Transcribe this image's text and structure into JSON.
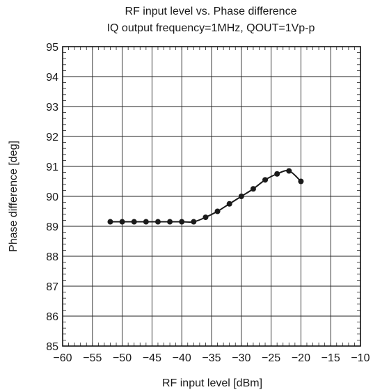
{
  "chart_data": {
    "type": "line",
    "title": "RF input level vs. Phase difference",
    "subtitle": "IQ output frequency=1MHz, QOUT=1Vp-p",
    "xlabel": "RF input level [dBm]",
    "ylabel": "Phase difference [deg]",
    "xlim": [
      -60,
      -10
    ],
    "ylim": [
      85,
      95
    ],
    "xticks": [
      -60,
      -55,
      -50,
      -45,
      -40,
      -35,
      -30,
      -25,
      -20,
      -15,
      -10
    ],
    "yticks": [
      85,
      86,
      87,
      88,
      89,
      90,
      91,
      92,
      93,
      94,
      95
    ],
    "xtick_labels": [
      "−60",
      "−55",
      "−50",
      "−45",
      "−40",
      "−35",
      "−30",
      "−25",
      "−20",
      "−15",
      "−10"
    ],
    "ytick_labels": [
      "85",
      "86",
      "87",
      "88",
      "89",
      "90",
      "91",
      "92",
      "93",
      "94",
      "95"
    ],
    "grid": true,
    "series": [
      {
        "x": [
          -52,
          -50,
          -48,
          -46,
          -44,
          -42,
          -40,
          -38,
          -36,
          -34,
          -32,
          -30,
          -28,
          -26,
          -24,
          -22,
          -20
        ],
        "y": [
          89.15,
          89.15,
          89.15,
          89.15,
          89.15,
          89.15,
          89.15,
          89.15,
          89.3,
          89.5,
          89.75,
          90.0,
          90.25,
          90.55,
          90.75,
          90.85,
          90.5
        ],
        "color": "#1a1a1a"
      }
    ]
  }
}
